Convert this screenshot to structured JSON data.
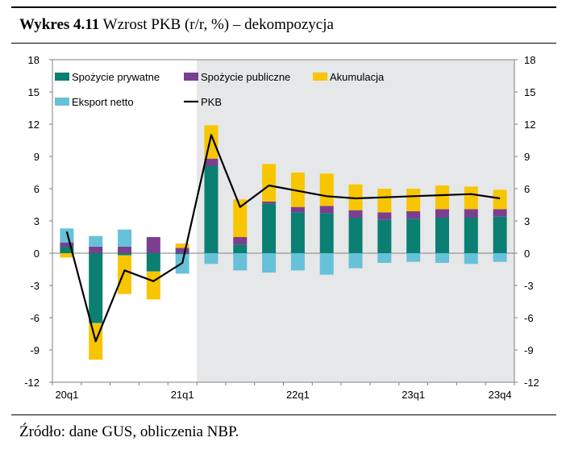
{
  "caption": {
    "label": "Wykres 4.11",
    "text": "Wzrost PKB (r/r, %) – dekompozycja"
  },
  "source": "Źródło: dane GUS, obliczenia NBP.",
  "colors": {
    "prywatne": "#0a7f72",
    "publiczne": "#7b3f8f",
    "akumulacja": "#f7c600",
    "eksport": "#66c1d9",
    "pkb": "#000000",
    "shade": "#e6e7e8"
  },
  "chart_data": {
    "type": "bar",
    "stacked": true,
    "categories": [
      "20q1",
      "20q2",
      "20q3",
      "20q4",
      "21q1",
      "21q2",
      "21q3",
      "21q4",
      "22q1",
      "22q2",
      "22q3",
      "22q4",
      "23q1",
      "23q2",
      "23q3",
      "23q4"
    ],
    "x_tick_labels": [
      "20q1",
      "21q1",
      "22q1",
      "23q1",
      "23q4"
    ],
    "y_ticks": [
      18,
      15,
      12,
      9,
      6,
      3,
      0,
      -3,
      -6,
      -9,
      -12
    ],
    "ylim": [
      -12,
      18
    ],
    "shaded_from": "21q2",
    "legend_position": "top",
    "series": [
      {
        "name": "Spożycie prywatne",
        "key": "prywatne",
        "kind": "bar",
        "values": [
          0.6,
          -6.5,
          -0.2,
          -1.7,
          -0.1,
          8.1,
          0.8,
          4.6,
          3.8,
          3.7,
          3.3,
          3.1,
          3.2,
          3.3,
          3.3,
          3.4
        ]
      },
      {
        "name": "Spożycie publiczne",
        "key": "publiczne",
        "kind": "bar",
        "values": [
          0.4,
          0.6,
          0.6,
          1.5,
          0.5,
          0.7,
          0.7,
          0.2,
          0.5,
          0.7,
          0.7,
          0.7,
          0.7,
          0.8,
          0.8,
          0.7
        ]
      },
      {
        "name": "Akumulacja",
        "key": "akumulacja",
        "kind": "bar",
        "values": [
          -0.4,
          -3.4,
          -3.6,
          -2.6,
          0.4,
          3.1,
          3.5,
          3.5,
          3.2,
          3.0,
          2.4,
          2.2,
          2.1,
          2.2,
          2.1,
          1.8
        ]
      },
      {
        "name": "Eksport netto",
        "key": "eksport",
        "kind": "bar",
        "values": [
          1.3,
          1.0,
          1.6,
          0.0,
          -1.8,
          -1.0,
          -1.6,
          -1.8,
          -1.6,
          -2.0,
          -1.4,
          -0.9,
          -0.8,
          -0.9,
          -1.0,
          -0.8
        ]
      },
      {
        "name": "PKB",
        "key": "pkb",
        "kind": "line",
        "values": [
          2.0,
          -8.2,
          -1.6,
          -2.6,
          -0.9,
          11.0,
          4.3,
          6.3,
          5.8,
          5.3,
          5.1,
          5.2,
          5.3,
          5.4,
          5.5,
          5.1
        ]
      }
    ]
  }
}
